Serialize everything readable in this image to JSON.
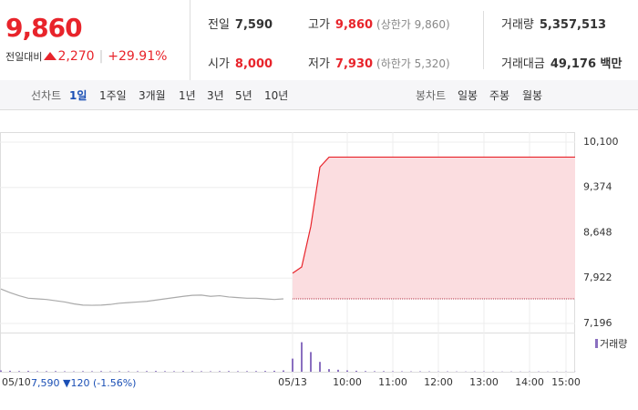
{
  "quote": {
    "price": "9,860",
    "change_label": "전일대비",
    "change": "2,270",
    "change_pct": "+29.91%"
  },
  "stats": [
    {
      "label": "전일",
      "value": "7,590"
    },
    {
      "label": "고가",
      "value": "9,860",
      "note": "(상한가 9,860)"
    },
    {
      "label": "거래량",
      "value": "5,357,513"
    },
    {
      "label": "시가",
      "value": "8,000"
    },
    {
      "label": "저가",
      "value": "7,930",
      "note": "(하한가 5,320)"
    },
    {
      "label": "거래대금",
      "value": "49,176 백만"
    }
  ],
  "tabs": {
    "line_label": "선차트",
    "line": [
      "1일",
      "1주일",
      "3개월",
      "1년",
      "3년",
      "5년",
      "10년"
    ],
    "candle_label": "봉차트",
    "candle": [
      "일봉",
      "주봉",
      "월봉"
    ]
  },
  "footer": {
    "prev_price": "7,590",
    "prev_change": "▼120",
    "prev_change_pct": "(-1.56%)"
  },
  "chart_data": {
    "type": "line",
    "categories": [
      "05/10",
      null,
      null,
      null,
      null,
      null,
      null,
      null,
      null,
      null,
      null,
      null,
      null,
      null,
      null,
      null,
      null,
      null,
      null,
      null,
      null,
      null,
      null,
      null,
      null,
      null,
      null,
      null,
      null,
      null,
      null,
      null,
      "05/13",
      null,
      null,
      null,
      null,
      null,
      "10:00",
      null,
      null,
      null,
      null,
      "11:00",
      null,
      null,
      null,
      null,
      "12:00",
      null,
      null,
      null,
      null,
      "13:00",
      null,
      null,
      null,
      null,
      "14:00",
      null,
      null,
      null,
      "15:00",
      null
    ],
    "series": [
      {
        "color": "#aaaaaa",
        "values": [
          7748,
          7690,
          7640,
          7600,
          7590,
          7580,
          7560,
          7540,
          7510,
          7490,
          7487,
          7490,
          7500,
          7520,
          7530,
          7540,
          7550,
          7570,
          7590,
          7610,
          7630,
          7646,
          7650,
          7630,
          7640,
          7620,
          7610,
          7600,
          7600,
          7590,
          7580,
          7590,
          null,
          null,
          null,
          null,
          null,
          null,
          null,
          null,
          null,
          null,
          null,
          null,
          null,
          null,
          null,
          null,
          null,
          null,
          null,
          null,
          null,
          null,
          null,
          null,
          null,
          null,
          null,
          null,
          null,
          null,
          null,
          null
        ]
      },
      {
        "color": "#e8242b",
        "values": [
          null,
          null,
          null,
          null,
          null,
          null,
          null,
          null,
          null,
          null,
          null,
          null,
          null,
          null,
          null,
          null,
          null,
          null,
          null,
          null,
          null,
          null,
          null,
          null,
          null,
          null,
          null,
          null,
          null,
          null,
          null,
          null,
          8000,
          8100,
          8750,
          9700,
          9860,
          9860,
          9860,
          9860,
          9860,
          9860,
          9860,
          9860,
          9860,
          9860,
          9860,
          9860,
          9860,
          9860,
          9860,
          9860,
          9860,
          9860,
          9860,
          9860,
          9860,
          9860,
          9860,
          9860,
          9860,
          9860,
          9860,
          9860
        ]
      }
    ],
    "baseline": 7590,
    "ylim": [
      7050,
      10260
    ],
    "yticks": [
      {
        "value": 10100,
        "label": "10,100"
      },
      {
        "value": 9374,
        "label": "9,374"
      },
      {
        "value": 8648,
        "label": "8,648"
      },
      {
        "value": 7922,
        "label": "7,922"
      },
      {
        "value": 7196,
        "label": "7,196"
      }
    ],
    "volume": {
      "name": "거래량",
      "color": "#8a6fc0",
      "ylim": [
        0,
        500000
      ],
      "values": [
        20000,
        15000,
        10000,
        12000,
        8000,
        9000,
        10000,
        7000,
        6000,
        9000,
        8000,
        10000,
        6000,
        9000,
        7000,
        8000,
        10000,
        12000,
        9000,
        8000,
        10000,
        9000,
        8000,
        7000,
        9000,
        10000,
        8000,
        9000,
        10000,
        12000,
        15000,
        20000,
        200000,
        450000,
        300000,
        150000,
        40000,
        30000,
        20000,
        15000,
        10000,
        8000,
        9000,
        7000,
        6000,
        5000,
        6000,
        5000,
        4000,
        5000,
        4000,
        3000,
        4000,
        5000,
        4000,
        3000,
        4000,
        3000,
        3000,
        4000,
        3000,
        3000,
        3000,
        2000
      ]
    }
  }
}
